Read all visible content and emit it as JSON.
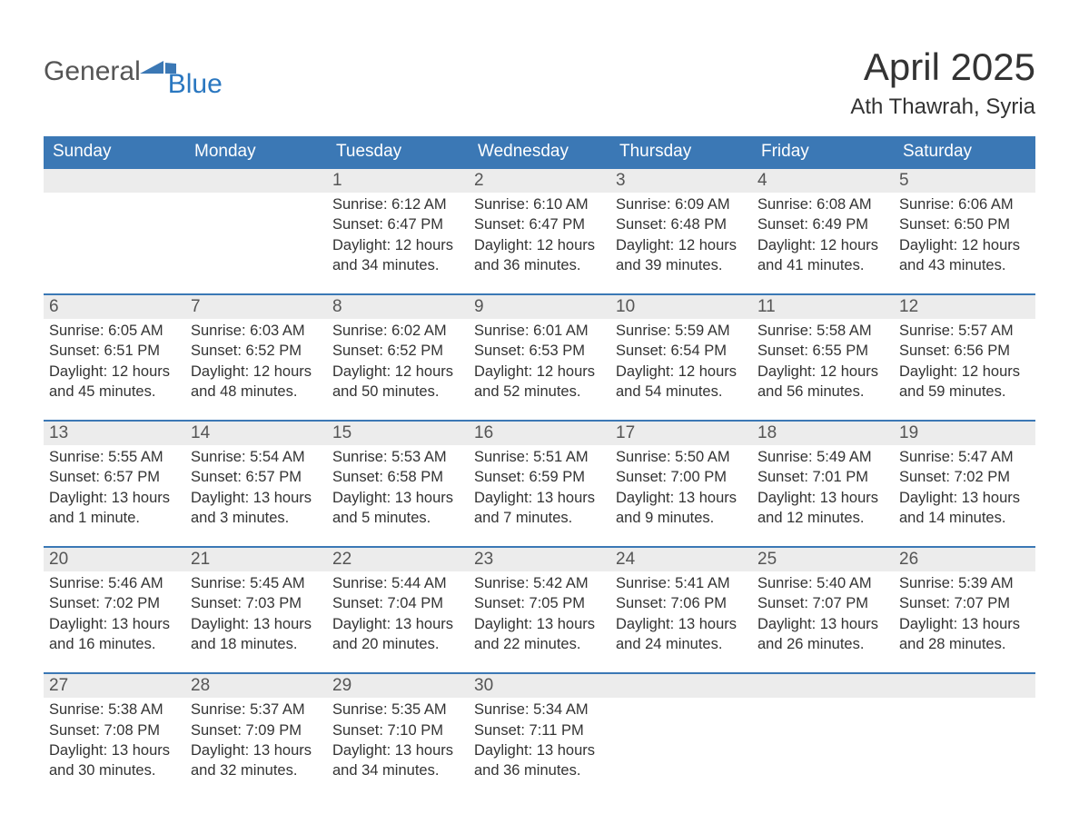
{
  "logo": {
    "general": "General",
    "blue": "Blue",
    "flag_color": "#3b78b5"
  },
  "title": "April 2025",
  "location": "Ath Thawrah, Syria",
  "colors": {
    "header_bg": "#3b78b5",
    "header_text": "#ffffff",
    "daynum_bg": "#ececec",
    "row_border": "#3b78b5",
    "text": "#333333",
    "logo_blue": "#2a77c0"
  },
  "columns": [
    "Sunday",
    "Monday",
    "Tuesday",
    "Wednesday",
    "Thursday",
    "Friday",
    "Saturday"
  ],
  "header_fontsize": 19,
  "body_fontsize": 16.5,
  "weeks": [
    [
      null,
      null,
      {
        "n": "1",
        "sr": "6:12 AM",
        "ss": "6:47 PM",
        "dl": "12 hours and 34 minutes."
      },
      {
        "n": "2",
        "sr": "6:10 AM",
        "ss": "6:47 PM",
        "dl": "12 hours and 36 minutes."
      },
      {
        "n": "3",
        "sr": "6:09 AM",
        "ss": "6:48 PM",
        "dl": "12 hours and 39 minutes."
      },
      {
        "n": "4",
        "sr": "6:08 AM",
        "ss": "6:49 PM",
        "dl": "12 hours and 41 minutes."
      },
      {
        "n": "5",
        "sr": "6:06 AM",
        "ss": "6:50 PM",
        "dl": "12 hours and 43 minutes."
      }
    ],
    [
      {
        "n": "6",
        "sr": "6:05 AM",
        "ss": "6:51 PM",
        "dl": "12 hours and 45 minutes."
      },
      {
        "n": "7",
        "sr": "6:03 AM",
        "ss": "6:52 PM",
        "dl": "12 hours and 48 minutes."
      },
      {
        "n": "8",
        "sr": "6:02 AM",
        "ss": "6:52 PM",
        "dl": "12 hours and 50 minutes."
      },
      {
        "n": "9",
        "sr": "6:01 AM",
        "ss": "6:53 PM",
        "dl": "12 hours and 52 minutes."
      },
      {
        "n": "10",
        "sr": "5:59 AM",
        "ss": "6:54 PM",
        "dl": "12 hours and 54 minutes."
      },
      {
        "n": "11",
        "sr": "5:58 AM",
        "ss": "6:55 PM",
        "dl": "12 hours and 56 minutes."
      },
      {
        "n": "12",
        "sr": "5:57 AM",
        "ss": "6:56 PM",
        "dl": "12 hours and 59 minutes."
      }
    ],
    [
      {
        "n": "13",
        "sr": "5:55 AM",
        "ss": "6:57 PM",
        "dl": "13 hours and 1 minute."
      },
      {
        "n": "14",
        "sr": "5:54 AM",
        "ss": "6:57 PM",
        "dl": "13 hours and 3 minutes."
      },
      {
        "n": "15",
        "sr": "5:53 AM",
        "ss": "6:58 PM",
        "dl": "13 hours and 5 minutes."
      },
      {
        "n": "16",
        "sr": "5:51 AM",
        "ss": "6:59 PM",
        "dl": "13 hours and 7 minutes."
      },
      {
        "n": "17",
        "sr": "5:50 AM",
        "ss": "7:00 PM",
        "dl": "13 hours and 9 minutes."
      },
      {
        "n": "18",
        "sr": "5:49 AM",
        "ss": "7:01 PM",
        "dl": "13 hours and 12 minutes."
      },
      {
        "n": "19",
        "sr": "5:47 AM",
        "ss": "7:02 PM",
        "dl": "13 hours and 14 minutes."
      }
    ],
    [
      {
        "n": "20",
        "sr": "5:46 AM",
        "ss": "7:02 PM",
        "dl": "13 hours and 16 minutes."
      },
      {
        "n": "21",
        "sr": "5:45 AM",
        "ss": "7:03 PM",
        "dl": "13 hours and 18 minutes."
      },
      {
        "n": "22",
        "sr": "5:44 AM",
        "ss": "7:04 PM",
        "dl": "13 hours and 20 minutes."
      },
      {
        "n": "23",
        "sr": "5:42 AM",
        "ss": "7:05 PM",
        "dl": "13 hours and 22 minutes."
      },
      {
        "n": "24",
        "sr": "5:41 AM",
        "ss": "7:06 PM",
        "dl": "13 hours and 24 minutes."
      },
      {
        "n": "25",
        "sr": "5:40 AM",
        "ss": "7:07 PM",
        "dl": "13 hours and 26 minutes."
      },
      {
        "n": "26",
        "sr": "5:39 AM",
        "ss": "7:07 PM",
        "dl": "13 hours and 28 minutes."
      }
    ],
    [
      {
        "n": "27",
        "sr": "5:38 AM",
        "ss": "7:08 PM",
        "dl": "13 hours and 30 minutes."
      },
      {
        "n": "28",
        "sr": "5:37 AM",
        "ss": "7:09 PM",
        "dl": "13 hours and 32 minutes."
      },
      {
        "n": "29",
        "sr": "5:35 AM",
        "ss": "7:10 PM",
        "dl": "13 hours and 34 minutes."
      },
      {
        "n": "30",
        "sr": "5:34 AM",
        "ss": "7:11 PM",
        "dl": "13 hours and 36 minutes."
      },
      null,
      null,
      null
    ]
  ],
  "labels": {
    "sunrise": "Sunrise:",
    "sunset": "Sunset:",
    "daylight": "Daylight:"
  }
}
